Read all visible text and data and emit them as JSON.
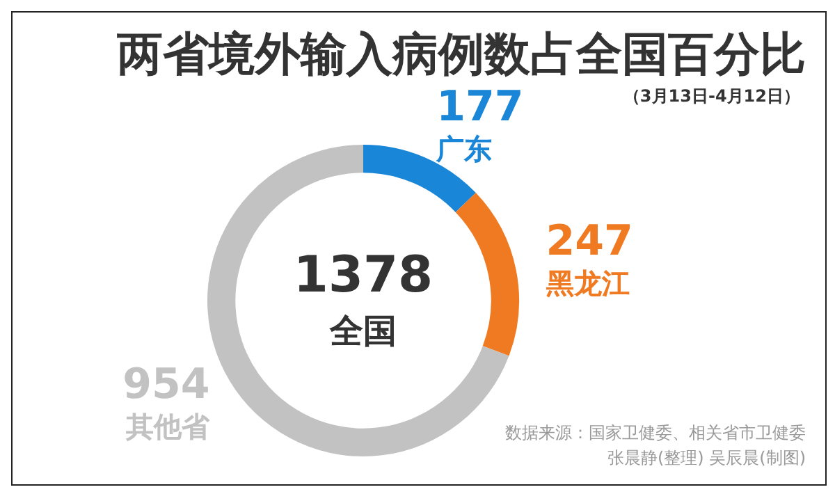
{
  "chart_data": {
    "type": "donut",
    "title": "两省境外输入病例数占全国百分比",
    "subtitle": "（3月13日-4月12日）",
    "categories": [
      "广东",
      "黑龙江",
      "其他省"
    ],
    "values": [
      177,
      247,
      954
    ],
    "colors": [
      "#1a86d8",
      "#f07a22",
      "#c2c2c2"
    ],
    "data_labels": true,
    "legend": false,
    "annotations": [
      "1378",
      "全国",
      "数据来源：国家卫健委、相关省市卫健委",
      "张晨静(整理)  吴辰晨(制图)"
    ]
  }
}
